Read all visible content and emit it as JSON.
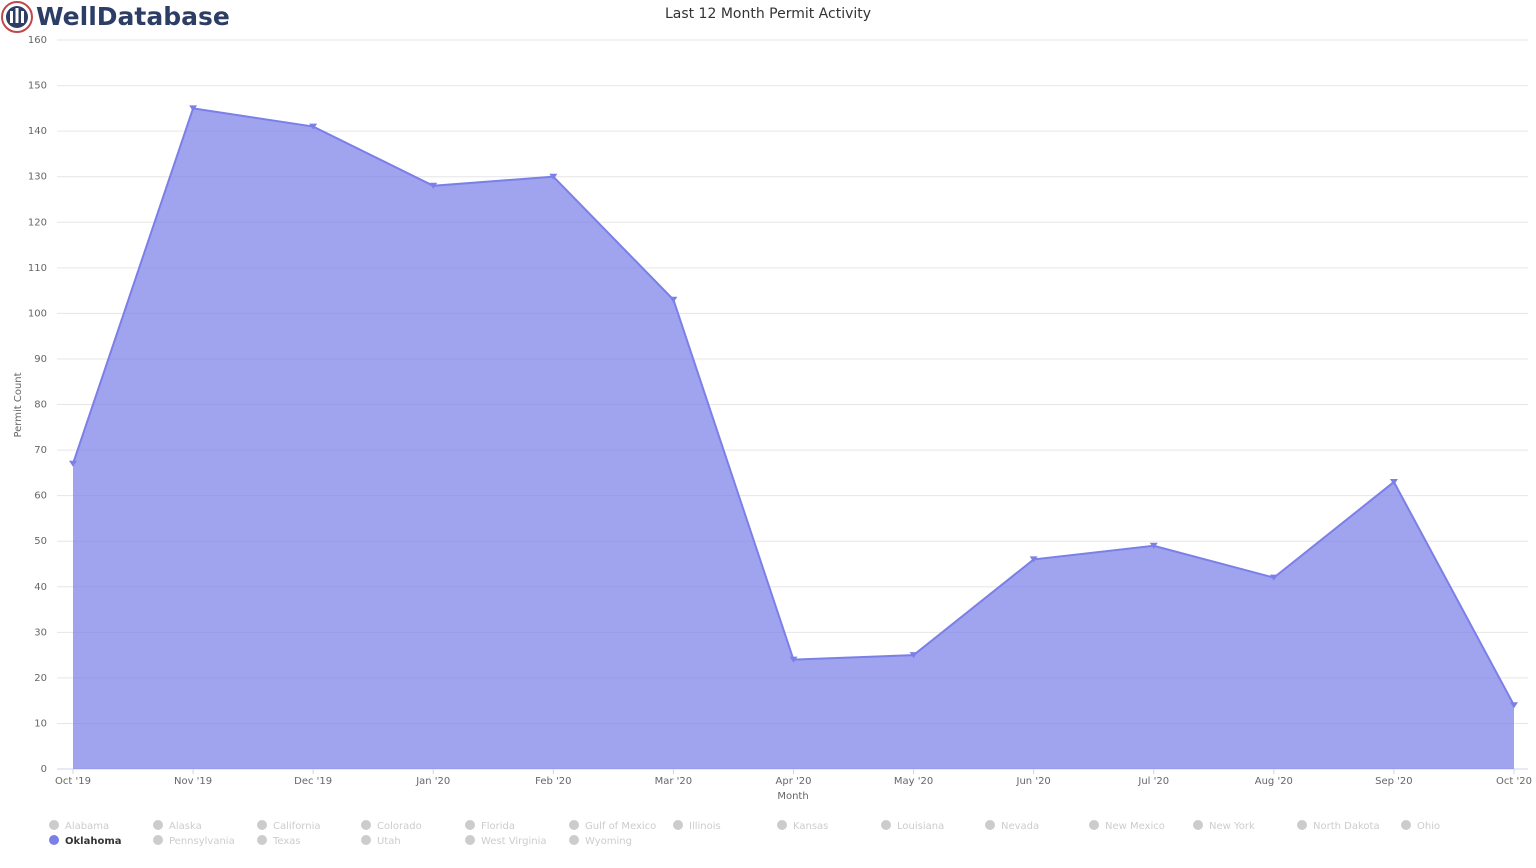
{
  "logo": "WellDatabase",
  "chart_data": {
    "type": "area",
    "title": "Last 12 Month Permit Activity",
    "x_label": "Month",
    "y_label": "Permit Count",
    "categories": [
      "Oct '19",
      "Nov '19",
      "Dec '19",
      "Jan '20",
      "Feb '20",
      "Mar '20",
      "Apr '20",
      "May '20",
      "Jun '20",
      "Jul '20",
      "Aug '20",
      "Sep '20",
      "Oct '20"
    ],
    "ylim": [
      0,
      160
    ],
    "yticks": [
      0,
      10,
      20,
      30,
      40,
      50,
      60,
      70,
      80,
      90,
      100,
      110,
      120,
      130,
      140,
      150,
      160
    ],
    "grid": true,
    "legend": "bottom",
    "series": [
      {
        "name": "Alabama",
        "visible": false
      },
      {
        "name": "Alaska",
        "visible": false
      },
      {
        "name": "California",
        "visible": false
      },
      {
        "name": "Colorado",
        "visible": false
      },
      {
        "name": "Florida",
        "visible": false
      },
      {
        "name": "Gulf of Mexico",
        "visible": false
      },
      {
        "name": "Illinois",
        "visible": false
      },
      {
        "name": "Kansas",
        "visible": false
      },
      {
        "name": "Louisiana",
        "visible": false
      },
      {
        "name": "Nevada",
        "visible": false
      },
      {
        "name": "New Mexico",
        "visible": false
      },
      {
        "name": "New York",
        "visible": false
      },
      {
        "name": "North Dakota",
        "visible": false
      },
      {
        "name": "Ohio",
        "visible": false
      },
      {
        "name": "Oklahoma",
        "visible": true,
        "color": "#7b7fe8",
        "values": [
          67,
          145,
          141,
          128,
          130,
          103,
          24,
          25,
          46,
          49,
          42,
          63,
          14
        ]
      },
      {
        "name": "Pennsylvania",
        "visible": false
      },
      {
        "name": "Texas",
        "visible": false
      },
      {
        "name": "Utah",
        "visible": false
      },
      {
        "name": "West Virginia",
        "visible": false
      },
      {
        "name": "Wyoming",
        "visible": false
      }
    ]
  }
}
